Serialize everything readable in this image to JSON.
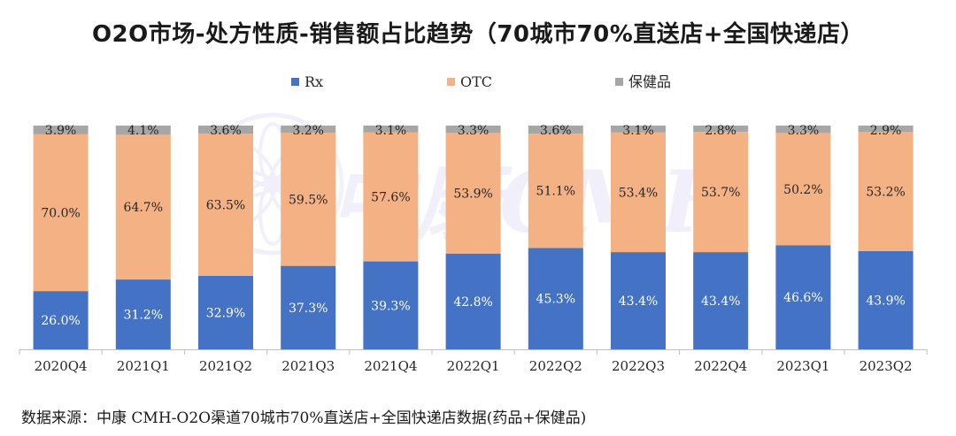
{
  "title": "O2O市场-处方性质-销售额占比趋势（70城市70%直送店+全国快递店）",
  "source_note": "数据来源：中康 CMH-O2O渠道70城市70%直送店+全国快递店数据(药品+保健品)",
  "watermark": "中康CMH",
  "colors": {
    "Rx": "#4472c4",
    "OTC": "#f4b183",
    "保健品": "#a6a6a6"
  },
  "chart_data": {
    "type": "bar",
    "stacked": true,
    "percent": true,
    "categories": [
      "2020Q4",
      "2021Q1",
      "2021Q2",
      "2021Q3",
      "2021Q4",
      "2022Q1",
      "2022Q2",
      "2022Q3",
      "2022Q4",
      "2023Q1",
      "2023Q2"
    ],
    "series": [
      {
        "name": "Rx",
        "values": [
          26.0,
          31.2,
          32.9,
          37.3,
          39.3,
          42.8,
          45.3,
          43.4,
          43.4,
          46.6,
          43.9
        ],
        "labels": [
          "26.0%",
          "31.2%",
          "32.9%",
          "37.3%",
          "39.3%",
          "42.8%",
          "45.3%",
          "43.4%",
          "43.4%",
          "46.6%",
          "43.9%"
        ]
      },
      {
        "name": "OTC",
        "values": [
          70.0,
          64.7,
          63.5,
          59.5,
          57.6,
          53.9,
          51.1,
          53.4,
          53.7,
          50.2,
          53.2
        ],
        "labels": [
          "70.0%",
          "64.7%",
          "63.5%",
          "59.5%",
          "57.6%",
          "53.9%",
          "51.1%",
          "53.4%",
          "53.7%",
          "50.2%",
          "53.2%"
        ]
      },
      {
        "name": "保健品",
        "values": [
          3.9,
          4.1,
          3.6,
          3.2,
          3.1,
          3.3,
          3.6,
          3.1,
          2.8,
          3.3,
          2.9
        ],
        "labels": [
          "3.9%",
          "4.1%",
          "3.6%",
          "3.2%",
          "3.1%",
          "3.3%",
          "3.6%",
          "3.1%",
          "2.8%",
          "3.3%",
          "2.9%"
        ]
      }
    ],
    "ylim": [
      0,
      100
    ],
    "legend": "top",
    "grid": false
  }
}
